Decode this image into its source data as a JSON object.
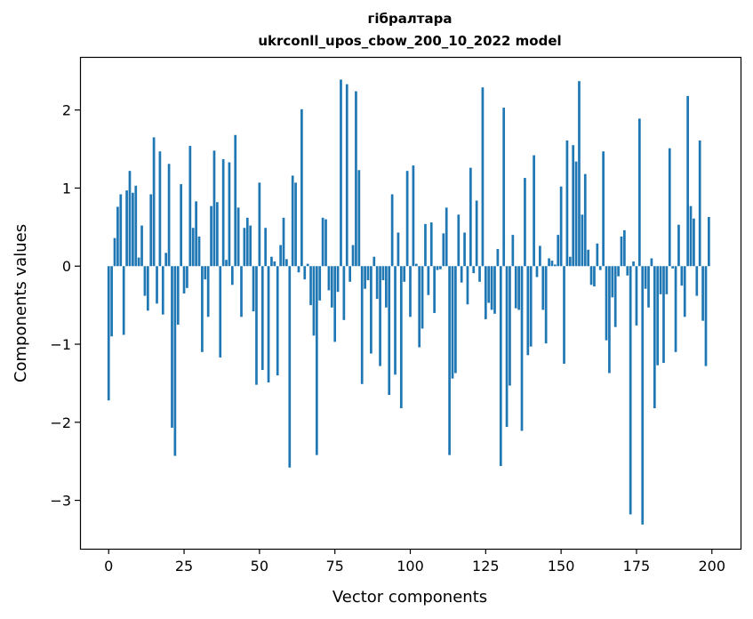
{
  "chart_data": {
    "type": "bar",
    "title": "гібралтара",
    "subtitle": "ukrconll_upos_cbow_200_10_2022 model",
    "xlabel": "Vector components",
    "ylabel": "Components values",
    "xlim": [
      -9.5,
      209.5
    ],
    "ylim": [
      -3.62,
      2.68
    ],
    "xticks": [
      0,
      25,
      50,
      75,
      100,
      125,
      150,
      175,
      200
    ],
    "yticks": [
      -3,
      -2,
      -1,
      0,
      1,
      2
    ],
    "ytick_labels": [
      "−3",
      "−2",
      "−1",
      "0",
      "1",
      "2"
    ],
    "bar_color": "#1f77b4",
    "x": [
      0,
      1,
      2,
      3,
      4,
      5,
      6,
      7,
      8,
      9,
      10,
      11,
      12,
      13,
      14,
      15,
      16,
      17,
      18,
      19,
      20,
      21,
      22,
      23,
      24,
      25,
      26,
      27,
      28,
      29,
      30,
      31,
      32,
      33,
      34,
      35,
      36,
      37,
      38,
      39,
      40,
      41,
      42,
      43,
      44,
      45,
      46,
      47,
      48,
      49,
      50,
      51,
      52,
      53,
      54,
      55,
      56,
      57,
      58,
      59,
      60,
      61,
      62,
      63,
      64,
      65,
      66,
      67,
      68,
      69,
      70,
      71,
      72,
      73,
      74,
      75,
      76,
      77,
      78,
      79,
      80,
      81,
      82,
      83,
      84,
      85,
      86,
      87,
      88,
      89,
      90,
      91,
      92,
      93,
      94,
      95,
      96,
      97,
      98,
      99,
      100,
      101,
      102,
      103,
      104,
      105,
      106,
      107,
      108,
      109,
      110,
      111,
      112,
      113,
      114,
      115,
      116,
      117,
      118,
      119,
      120,
      121,
      122,
      123,
      124,
      125,
      126,
      127,
      128,
      129,
      130,
      131,
      132,
      133,
      134,
      135,
      136,
      137,
      138,
      139,
      140,
      141,
      142,
      143,
      144,
      145,
      146,
      147,
      148,
      149,
      150,
      151,
      152,
      153,
      154,
      155,
      156,
      157,
      158,
      159,
      160,
      161,
      162,
      163,
      164,
      165,
      166,
      167,
      168,
      169,
      170,
      171,
      172,
      173,
      174,
      175,
      176,
      177,
      178,
      179,
      180,
      181,
      182,
      183,
      184,
      185,
      186,
      187,
      188,
      189,
      190,
      191,
      192,
      193,
      194,
      195,
      196,
      197,
      198,
      199
    ],
    "values": [
      -1.72,
      -0.9,
      0.36,
      0.76,
      0.92,
      -0.88,
      0.97,
      1.22,
      0.94,
      1.03,
      0.11,
      0.52,
      -0.38,
      -0.57,
      0.92,
      1.65,
      -0.48,
      1.47,
      -0.62,
      0.17,
      1.31,
      -2.07,
      -2.43,
      -0.75,
      1.05,
      -0.35,
      -0.28,
      1.54,
      0.49,
      0.83,
      0.38,
      -1.1,
      -0.17,
      -0.65,
      0.77,
      1.48,
      0.82,
      -1.17,
      1.37,
      0.08,
      1.33,
      -0.24,
      1.68,
      0.75,
      -0.65,
      0.49,
      0.62,
      0.52,
      -0.58,
      -1.52,
      1.07,
      -1.33,
      0.49,
      -1.49,
      0.12,
      0.06,
      -1.4,
      0.27,
      0.62,
      0.09,
      -2.58,
      1.16,
      1.07,
      -0.08,
      2.01,
      -0.17,
      0.03,
      -0.5,
      -0.89,
      -2.42,
      -0.44,
      0.62,
      0.6,
      -0.31,
      -0.53,
      -0.97,
      -0.33,
      2.39,
      -0.69,
      2.33,
      -0.2,
      0.27,
      2.24,
      1.23,
      -1.51,
      -0.29,
      -0.18,
      -1.12,
      0.12,
      -0.42,
      -1.28,
      -0.18,
      -0.53,
      -1.65,
      0.92,
      -1.39,
      0.43,
      -1.82,
      -0.2,
      1.22,
      -0.65,
      1.29,
      0.03,
      -1.04,
      -0.8,
      0.54,
      -0.37,
      0.56,
      -0.6,
      -0.05,
      -0.04,
      0.42,
      0.75,
      -2.42,
      -1.44,
      -1.37,
      0.66,
      -0.21,
      0.43,
      -0.49,
      1.26,
      -0.09,
      0.84,
      -0.2,
      2.29,
      -0.68,
      -0.47,
      -0.56,
      -0.61,
      0.22,
      -2.56,
      2.03,
      -2.06,
      -1.53,
      0.4,
      -0.54,
      -0.56,
      -2.11,
      1.13,
      -1.14,
      -1.03,
      1.42,
      -0.14,
      0.26,
      -0.56,
      -0.99,
      0.1,
      0.07,
      0.02,
      0.4,
      1.02,
      -1.25,
      1.61,
      0.12,
      1.55,
      1.34,
      2.37,
      0.66,
      1.18,
      0.21,
      -0.24,
      -0.26,
      0.29,
      -0.05,
      1.47,
      -0.95,
      -1.37,
      -0.4,
      -0.78,
      -0.13,
      0.38,
      0.46,
      -0.12,
      -3.18,
      0.06,
      -0.76,
      1.89,
      -3.31,
      -0.29,
      -0.53,
      0.1,
      -1.82,
      -1.27,
      -0.36,
      -1.24,
      -0.36,
      1.51,
      -0.03,
      -1.1,
      0.53,
      -0.25,
      -0.65,
      2.18,
      0.77,
      0.61,
      -0.38,
      1.61,
      -0.7,
      -1.28,
      0.63
    ]
  }
}
